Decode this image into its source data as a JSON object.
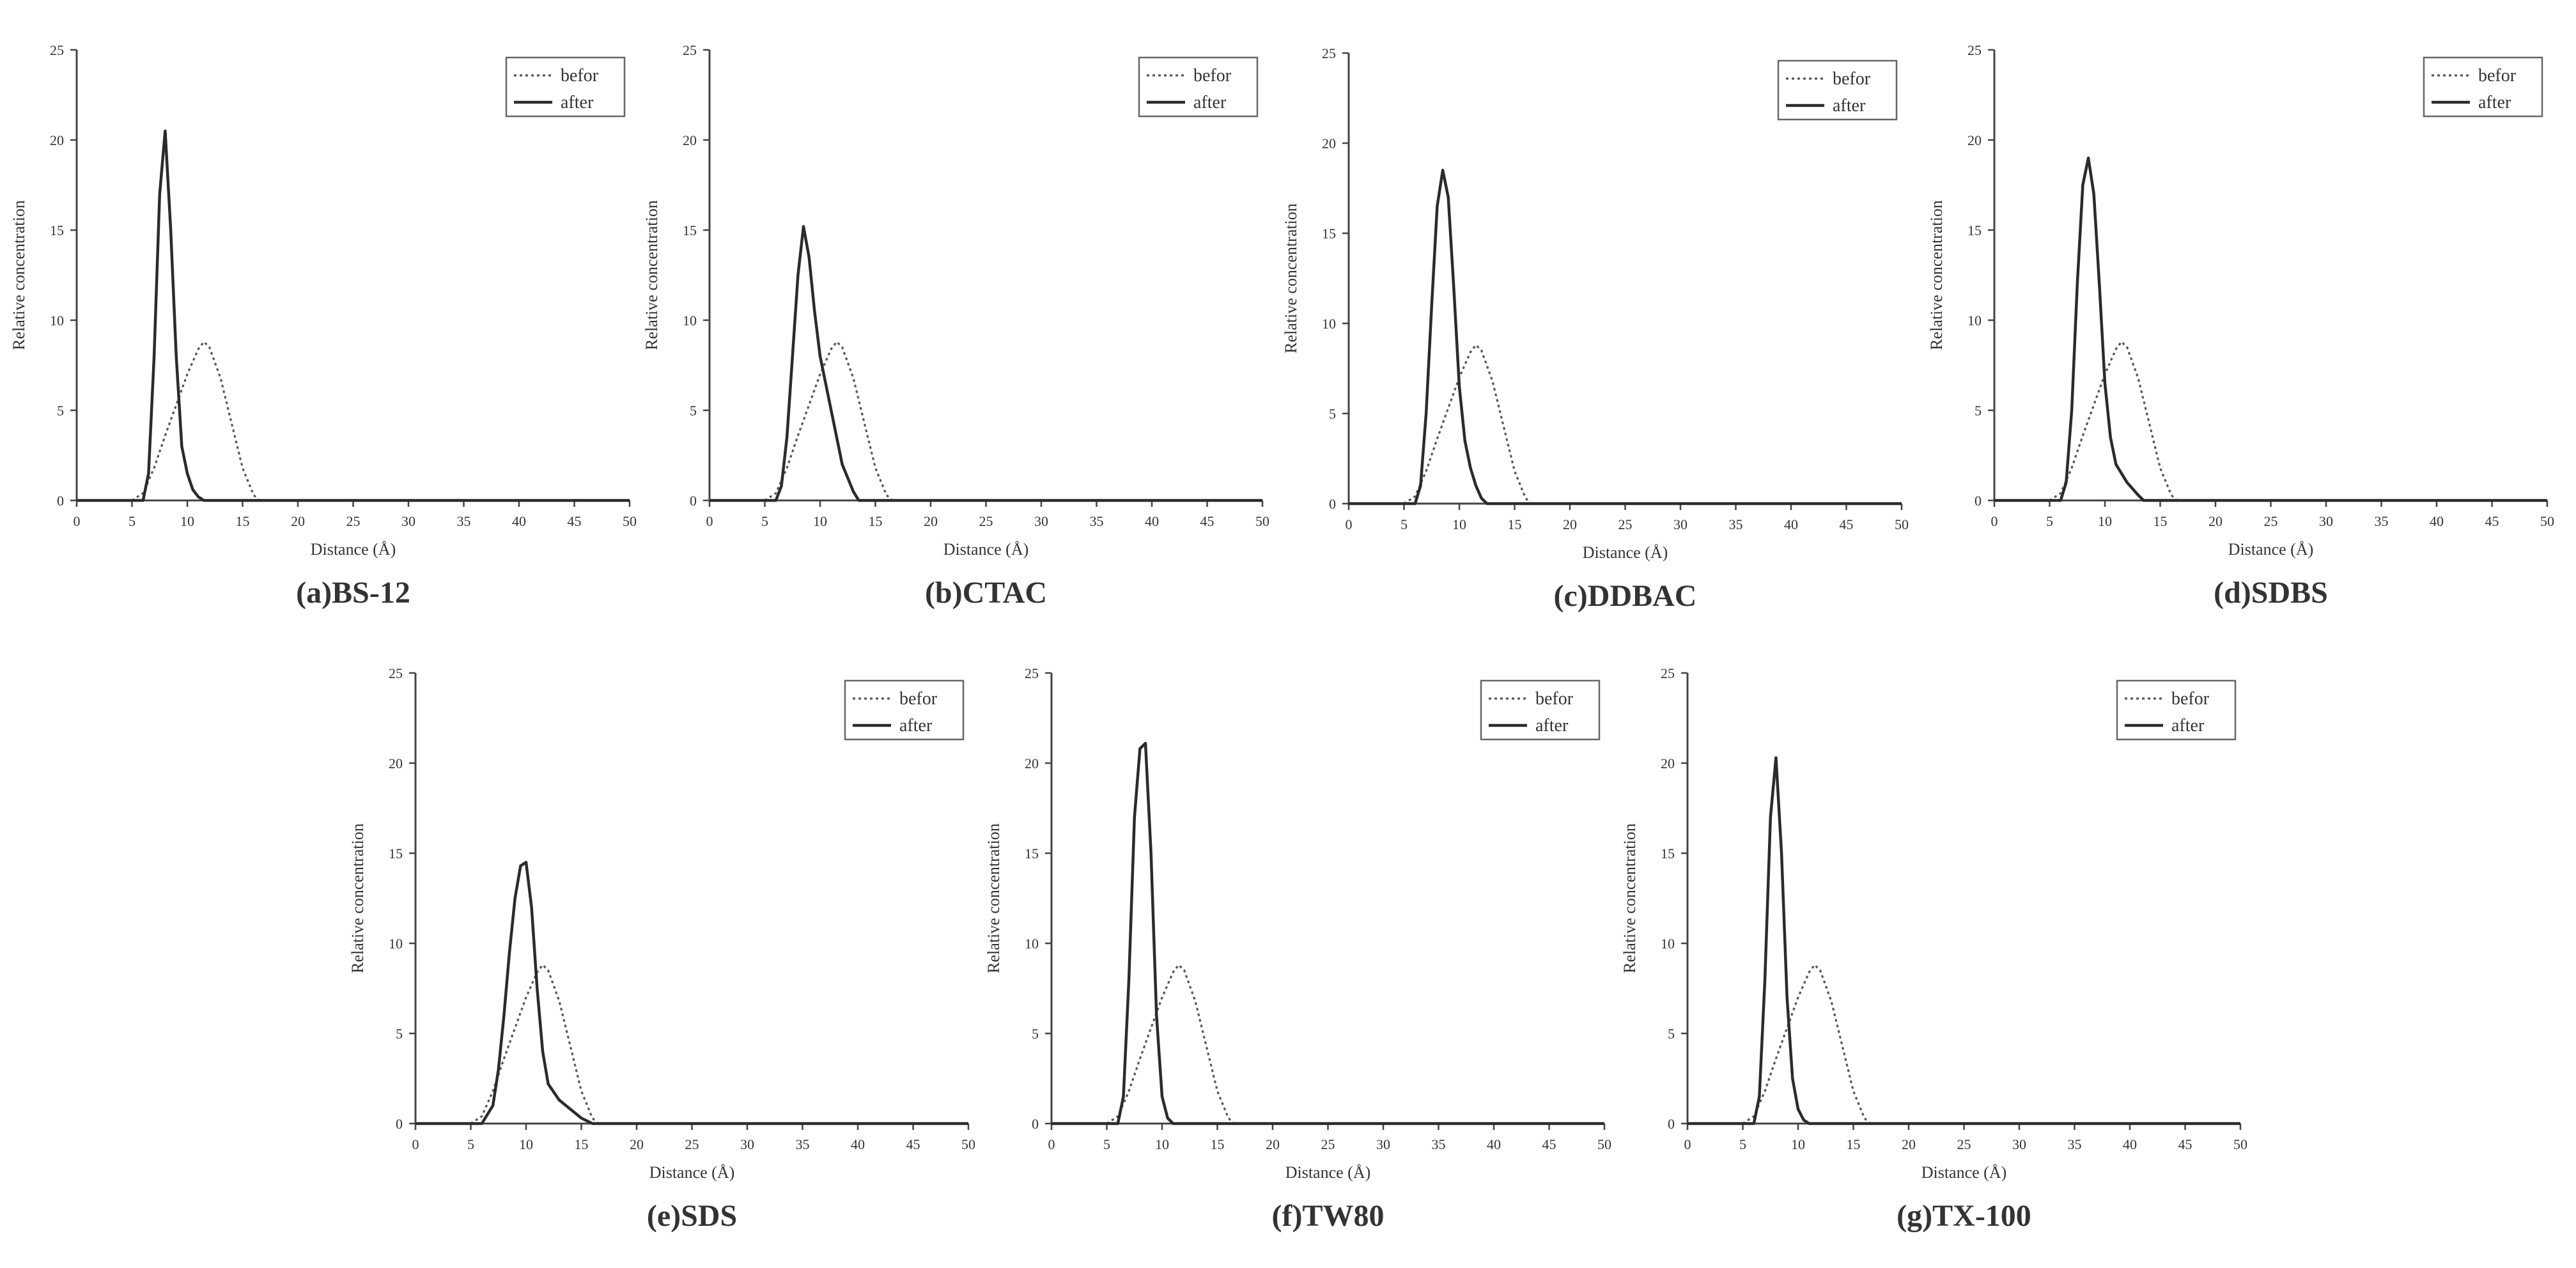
{
  "chart_data": [
    {
      "type": "line",
      "caption": "(a)BS-12",
      "xlabel": "Distance (Å)",
      "ylabel": "Relative concentration",
      "xlim": [
        0,
        50
      ],
      "ylim": [
        0,
        25
      ],
      "xticks": [
        0,
        5,
        10,
        15,
        20,
        25,
        30,
        35,
        40,
        45,
        50
      ],
      "yticks": [
        0,
        5,
        10,
        15,
        20,
        25
      ],
      "legend": "top-right",
      "series": [
        {
          "name": "befor",
          "style": "dotted",
          "points": [
            [
              5,
              0
            ],
            [
              6,
              0.4
            ],
            [
              7,
              1.8
            ],
            [
              8,
              3.6
            ],
            [
              9,
              5.3
            ],
            [
              10,
              7.0
            ],
            [
              11,
              8.4
            ],
            [
              11.5,
              8.8
            ],
            [
              12,
              8.5
            ],
            [
              13,
              6.8
            ],
            [
              14,
              4.3
            ],
            [
              15,
              1.8
            ],
            [
              16,
              0.3
            ],
            [
              16.5,
              0
            ],
            [
              50,
              0
            ]
          ]
        },
        {
          "name": "after",
          "style": "solid",
          "points": [
            [
              0,
              0
            ],
            [
              6,
              0
            ],
            [
              6.5,
              1.5
            ],
            [
              7,
              8.0
            ],
            [
              7.5,
              17.0
            ],
            [
              8,
              20.5
            ],
            [
              8.5,
              15.0
            ],
            [
              9,
              8.0
            ],
            [
              9.5,
              3.0
            ],
            [
              10,
              1.5
            ],
            [
              10.5,
              0.6
            ],
            [
              11,
              0.2
            ],
            [
              11.5,
              0
            ],
            [
              50,
              0
            ]
          ]
        }
      ]
    },
    {
      "type": "line",
      "caption": "(b)CTAC",
      "xlabel": "Distance (Å)",
      "ylabel": "Relative concentration",
      "xlim": [
        0,
        50
      ],
      "ylim": [
        0,
        25
      ],
      "xticks": [
        0,
        5,
        10,
        15,
        20,
        25,
        30,
        35,
        40,
        45,
        50
      ],
      "yticks": [
        0,
        5,
        10,
        15,
        20,
        25
      ],
      "legend": "top-right",
      "series": [
        {
          "name": "befor",
          "style": "dotted",
          "points": [
            [
              5,
              0
            ],
            [
              6,
              0.4
            ],
            [
              7,
              1.8
            ],
            [
              8,
              3.6
            ],
            [
              9,
              5.3
            ],
            [
              10,
              7.0
            ],
            [
              11,
              8.4
            ],
            [
              11.5,
              8.8
            ],
            [
              12,
              8.5
            ],
            [
              13,
              6.8
            ],
            [
              14,
              4.3
            ],
            [
              15,
              1.8
            ],
            [
              16,
              0.3
            ],
            [
              16.5,
              0
            ],
            [
              50,
              0
            ]
          ]
        },
        {
          "name": "after",
          "style": "solid",
          "points": [
            [
              0,
              0
            ],
            [
              6,
              0
            ],
            [
              6.5,
              0.8
            ],
            [
              7,
              3.5
            ],
            [
              7.5,
              8.0
            ],
            [
              8,
              12.5
            ],
            [
              8.5,
              15.2
            ],
            [
              9,
              13.5
            ],
            [
              9.5,
              10.5
            ],
            [
              10,
              8.0
            ],
            [
              11,
              5.0
            ],
            [
              12,
              2.0
            ],
            [
              13,
              0.5
            ],
            [
              13.5,
              0
            ],
            [
              50,
              0
            ]
          ]
        }
      ]
    },
    {
      "type": "line",
      "caption": "(c)DDBAC",
      "xlabel": "Distance (Å)",
      "ylabel": "Relative concentration",
      "xlim": [
        0,
        50
      ],
      "ylim": [
        0,
        25
      ],
      "xticks": [
        0,
        5,
        10,
        15,
        20,
        25,
        30,
        35,
        40,
        45,
        50
      ],
      "yticks": [
        0,
        5,
        10,
        15,
        20,
        25
      ],
      "legend": "top-right",
      "series": [
        {
          "name": "befor",
          "style": "dotted",
          "points": [
            [
              5,
              0
            ],
            [
              6,
              0.4
            ],
            [
              7,
              1.8
            ],
            [
              8,
              3.6
            ],
            [
              9,
              5.3
            ],
            [
              10,
              7.0
            ],
            [
              11,
              8.4
            ],
            [
              11.5,
              8.8
            ],
            [
              12,
              8.5
            ],
            [
              13,
              6.8
            ],
            [
              14,
              4.3
            ],
            [
              15,
              1.8
            ],
            [
              16,
              0.3
            ],
            [
              16.5,
              0
            ],
            [
              50,
              0
            ]
          ]
        },
        {
          "name": "after",
          "style": "solid",
          "points": [
            [
              0,
              0
            ],
            [
              6,
              0
            ],
            [
              6.5,
              1.0
            ],
            [
              7,
              5.0
            ],
            [
              7.5,
              11.0
            ],
            [
              8,
              16.5
            ],
            [
              8.5,
              18.5
            ],
            [
              9,
              17.0
            ],
            [
              9.5,
              12.0
            ],
            [
              10,
              6.5
            ],
            [
              10.5,
              3.5
            ],
            [
              11,
              2.0
            ],
            [
              11.5,
              1.0
            ],
            [
              12,
              0.3
            ],
            [
              12.5,
              0
            ],
            [
              50,
              0
            ]
          ]
        }
      ]
    },
    {
      "type": "line",
      "caption": "(d)SDBS",
      "xlabel": "Distance (Å)",
      "ylabel": "Relative concentration",
      "xlim": [
        0,
        50
      ],
      "ylim": [
        0,
        25
      ],
      "xticks": [
        0,
        5,
        10,
        15,
        20,
        25,
        30,
        35,
        40,
        45,
        50
      ],
      "yticks": [
        0,
        5,
        10,
        15,
        20,
        25
      ],
      "legend": "top-right",
      "series": [
        {
          "name": "befor",
          "style": "dotted",
          "points": [
            [
              5,
              0
            ],
            [
              6,
              0.4
            ],
            [
              7,
              1.8
            ],
            [
              8,
              3.6
            ],
            [
              9,
              5.3
            ],
            [
              10,
              7.0
            ],
            [
              11,
              8.4
            ],
            [
              11.5,
              8.8
            ],
            [
              12,
              8.5
            ],
            [
              13,
              6.8
            ],
            [
              14,
              4.3
            ],
            [
              15,
              1.8
            ],
            [
              16,
              0.3
            ],
            [
              16.5,
              0
            ],
            [
              50,
              0
            ]
          ]
        },
        {
          "name": "after",
          "style": "solid",
          "points": [
            [
              0,
              0
            ],
            [
              6,
              0
            ],
            [
              6.5,
              1.0
            ],
            [
              7,
              5.0
            ],
            [
              7.5,
              12.0
            ],
            [
              8,
              17.5
            ],
            [
              8.5,
              19.0
            ],
            [
              9,
              17.0
            ],
            [
              9.5,
              12.0
            ],
            [
              10,
              6.5
            ],
            [
              10.5,
              3.5
            ],
            [
              11,
              2.0
            ],
            [
              12,
              1.0
            ],
            [
              13,
              0.3
            ],
            [
              13.5,
              0
            ],
            [
              50,
              0
            ]
          ]
        }
      ]
    },
    {
      "type": "line",
      "caption": "(e)SDS",
      "xlabel": "Distance (Å)",
      "ylabel": "Relative concentration",
      "xlim": [
        0,
        50
      ],
      "ylim": [
        0,
        25
      ],
      "xticks": [
        0,
        5,
        10,
        15,
        20,
        25,
        30,
        35,
        40,
        45,
        50
      ],
      "yticks": [
        0,
        5,
        10,
        15,
        20,
        25
      ],
      "legend": "top-right",
      "series": [
        {
          "name": "befor",
          "style": "dotted",
          "points": [
            [
              5,
              0
            ],
            [
              6,
              0.4
            ],
            [
              7,
              1.8
            ],
            [
              8,
              3.6
            ],
            [
              9,
              5.3
            ],
            [
              10,
              7.0
            ],
            [
              11,
              8.4
            ],
            [
              11.5,
              8.8
            ],
            [
              12,
              8.5
            ],
            [
              13,
              6.8
            ],
            [
              14,
              4.3
            ],
            [
              15,
              1.8
            ],
            [
              16,
              0.3
            ],
            [
              16.5,
              0
            ],
            [
              50,
              0
            ]
          ]
        },
        {
          "name": "after",
          "style": "solid",
          "points": [
            [
              0,
              0
            ],
            [
              6,
              0
            ],
            [
              7,
              1.0
            ],
            [
              7.5,
              3.0
            ],
            [
              8,
              6.0
            ],
            [
              8.5,
              9.5
            ],
            [
              9,
              12.5
            ],
            [
              9.5,
              14.3
            ],
            [
              10,
              14.5
            ],
            [
              10.5,
              12.0
            ],
            [
              11,
              7.5
            ],
            [
              11.5,
              4.0
            ],
            [
              12,
              2.2
            ],
            [
              13,
              1.3
            ],
            [
              14,
              0.8
            ],
            [
              15,
              0.3
            ],
            [
              16,
              0
            ],
            [
              50,
              0
            ]
          ]
        }
      ]
    },
    {
      "type": "line",
      "caption": "(f)TW80",
      "xlabel": "Distance (Å)",
      "ylabel": "Relative concentration",
      "xlim": [
        0,
        50
      ],
      "ylim": [
        0,
        25
      ],
      "xticks": [
        0,
        5,
        10,
        15,
        20,
        25,
        30,
        35,
        40,
        45,
        50
      ],
      "yticks": [
        0,
        5,
        10,
        15,
        20,
        25
      ],
      "legend": "top-right",
      "series": [
        {
          "name": "befor",
          "style": "dotted",
          "points": [
            [
              5,
              0
            ],
            [
              6,
              0.4
            ],
            [
              7,
              1.8
            ],
            [
              8,
              3.6
            ],
            [
              9,
              5.3
            ],
            [
              10,
              7.0
            ],
            [
              11,
              8.4
            ],
            [
              11.5,
              8.8
            ],
            [
              12,
              8.5
            ],
            [
              13,
              6.8
            ],
            [
              14,
              4.3
            ],
            [
              15,
              1.8
            ],
            [
              16,
              0.3
            ],
            [
              16.5,
              0
            ],
            [
              50,
              0
            ]
          ]
        },
        {
          "name": "after",
          "style": "solid",
          "points": [
            [
              0,
              0
            ],
            [
              6,
              0
            ],
            [
              6.5,
              1.5
            ],
            [
              7,
              8.0
            ],
            [
              7.5,
              17.0
            ],
            [
              8,
              20.8
            ],
            [
              8.5,
              21.1
            ],
            [
              9,
              15.0
            ],
            [
              9.5,
              6.0
            ],
            [
              10,
              1.5
            ],
            [
              10.5,
              0.3
            ],
            [
              11,
              0
            ],
            [
              50,
              0
            ]
          ]
        }
      ]
    },
    {
      "type": "line",
      "caption": "(g)TX-100",
      "xlabel": "Distance (Å)",
      "ylabel": "Relative concentration",
      "xlim": [
        0,
        50
      ],
      "ylim": [
        0,
        25
      ],
      "xticks": [
        0,
        5,
        10,
        15,
        20,
        25,
        30,
        35,
        40,
        45,
        50
      ],
      "yticks": [
        0,
        5,
        10,
        15,
        20,
        25
      ],
      "legend": "top-right",
      "series": [
        {
          "name": "befor",
          "style": "dotted",
          "points": [
            [
              5,
              0
            ],
            [
              6,
              0.4
            ],
            [
              7,
              1.8
            ],
            [
              8,
              3.6
            ],
            [
              9,
              5.3
            ],
            [
              10,
              7.0
            ],
            [
              11,
              8.4
            ],
            [
              11.5,
              8.8
            ],
            [
              12,
              8.5
            ],
            [
              13,
              6.8
            ],
            [
              14,
              4.3
            ],
            [
              15,
              1.8
            ],
            [
              16,
              0.3
            ],
            [
              16.5,
              0
            ],
            [
              50,
              0
            ]
          ]
        },
        {
          "name": "after",
          "style": "solid",
          "points": [
            [
              0,
              0
            ],
            [
              6,
              0
            ],
            [
              6.5,
              1.5
            ],
            [
              7,
              8.0
            ],
            [
              7.5,
              17.0
            ],
            [
              8,
              20.3
            ],
            [
              8.5,
              15.0
            ],
            [
              9,
              7.0
            ],
            [
              9.5,
              2.5
            ],
            [
              10,
              0.8
            ],
            [
              10.5,
              0.2
            ],
            [
              11,
              0
            ],
            [
              50,
              0
            ]
          ]
        }
      ]
    }
  ]
}
